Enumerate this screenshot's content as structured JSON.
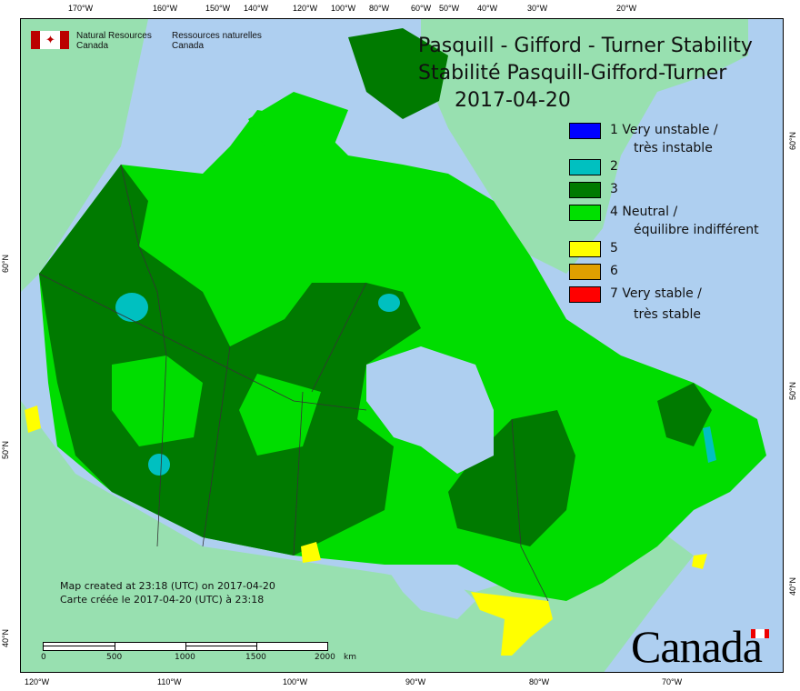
{
  "map": {
    "title_en": "Pasquill - Gifford - Turner Stability",
    "title_fr": "Stabilité Pasquill-Gifford-Turner",
    "date": "2017-04-20",
    "agency": {
      "en_line1": "Natural Resources",
      "en_line2": "Canada",
      "fr_line1": "Ressources naturelles",
      "fr_line2": "Canada"
    },
    "credit_en": "Map created at 23:18 (UTC) on 2017-04-20",
    "credit_fr": "Carte créée le 2017-04-20 (UTC) à 23:18",
    "wordmark": "Canada",
    "colors": {
      "water": "#aecff0",
      "land_outside": "#98e0b0",
      "class3": "#007a00",
      "class4": "#00dd00"
    },
    "legend": [
      {
        "label": "1 Very unstable /",
        "label2": "très instable",
        "color": "#0000ff"
      },
      {
        "label": "2",
        "color": "#00c0c0"
      },
      {
        "label": "3",
        "color": "#007a00"
      },
      {
        "label": "4 Neutral /",
        "label2": "équilibre indifférent",
        "color": "#00e000"
      },
      {
        "label": "5",
        "color": "#ffff00"
      },
      {
        "label": "6",
        "color": "#e0a000"
      },
      {
        "label": "7 Very stable /",
        "label2": "très stable",
        "color": "#ff0000"
      }
    ],
    "top_ticks": [
      "170°W",
      "160°W",
      "150°W",
      "140°W",
      "120°W",
      "100°W",
      "80°W",
      "60°W",
      "50°W",
      "40°W",
      "30°W",
      "20°W"
    ],
    "bottom_ticks": [
      "120°W",
      "110°W",
      "100°W",
      "90°W",
      "80°W",
      "70°W"
    ],
    "left_ticks": [
      "60°N",
      "50°N",
      "40°N"
    ],
    "right_ticks": [
      "60°N",
      "50°N",
      "40°N"
    ],
    "scale": {
      "labels": [
        "0",
        "500",
        "1000",
        "1500",
        "2000"
      ],
      "unit": "km"
    }
  }
}
